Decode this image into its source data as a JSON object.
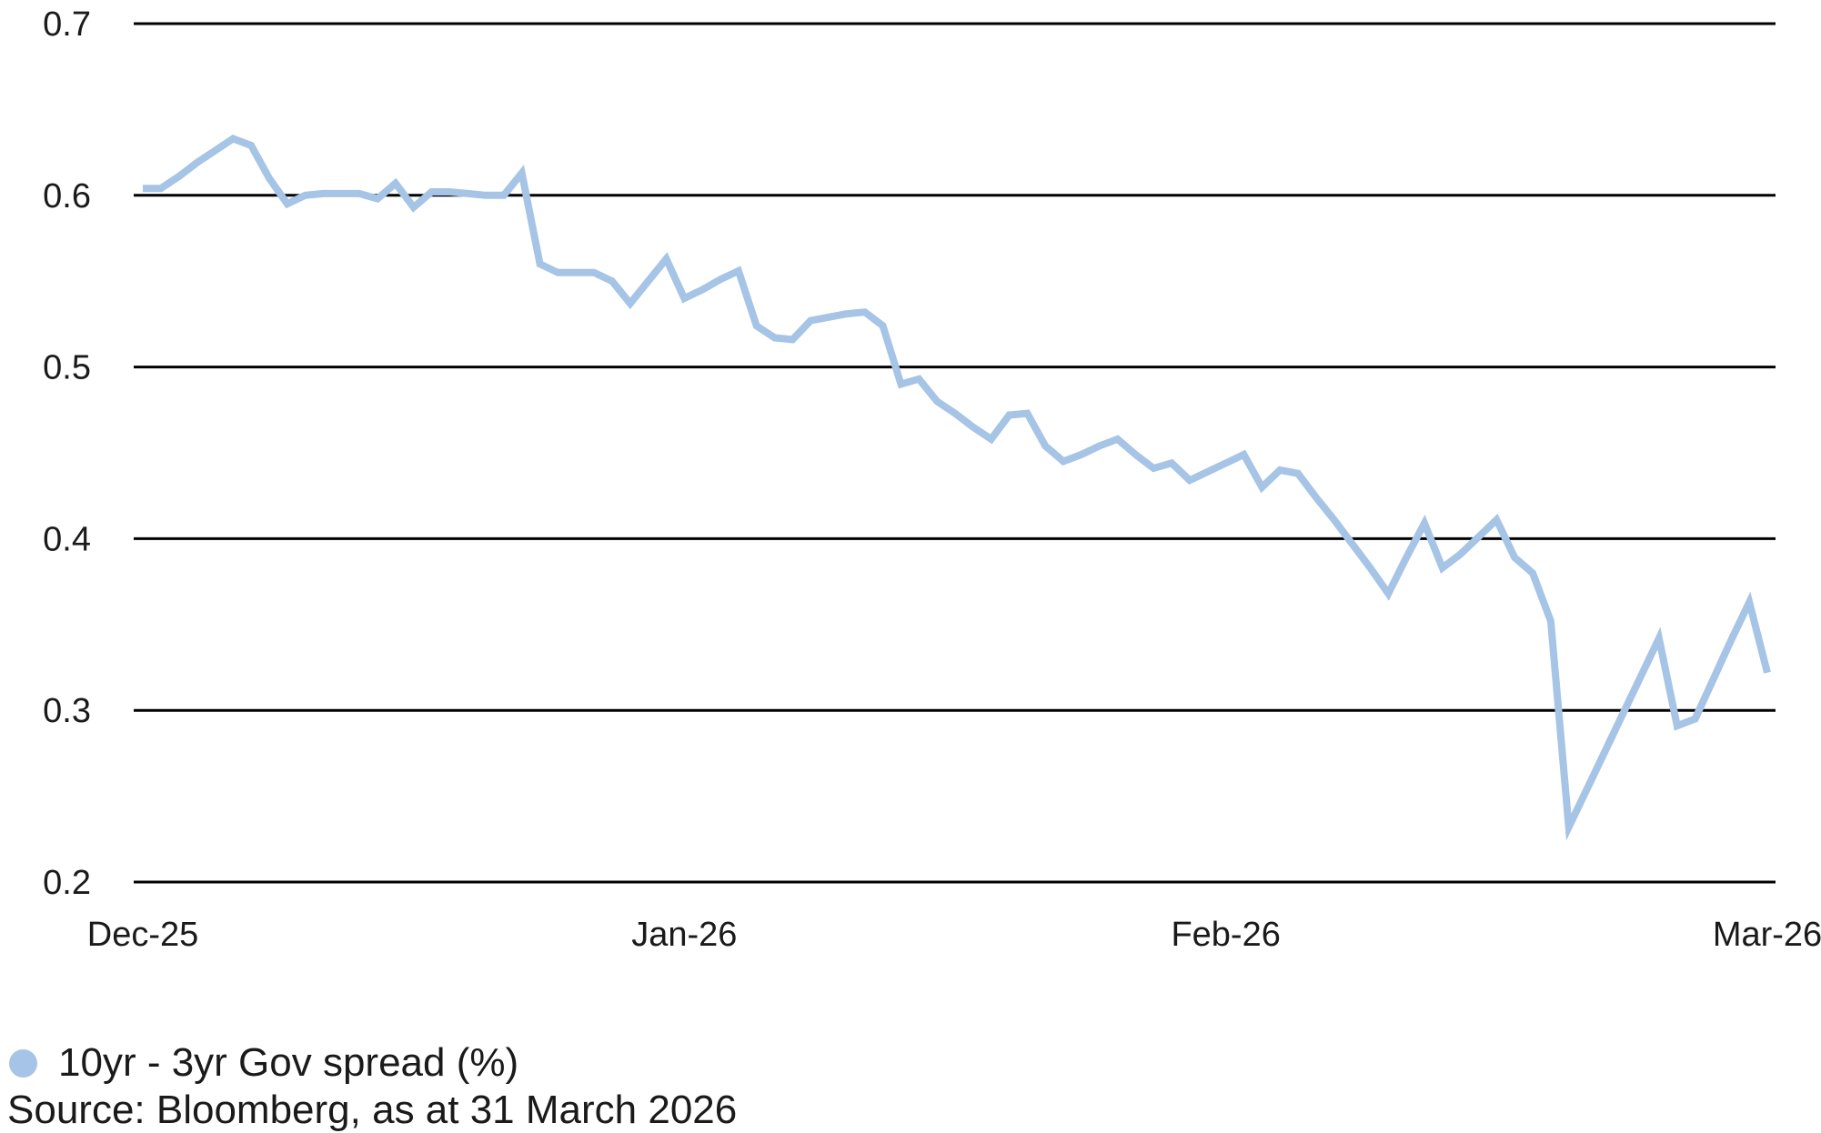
{
  "chart": {
    "legend_label": "10yr - 3yr Gov spread (%)",
    "source_text": "Source: Bloomberg, as at 31 March 2026",
    "line_color": "#a6c4e5",
    "gridline_color": "#000000",
    "text_color": "#1a1a1a"
  },
  "chart_data": {
    "type": "line",
    "title": "",
    "xlabel": "",
    "ylabel": "",
    "ylim": [
      0.2,
      0.7
    ],
    "y_ticks": [
      0.7,
      0.6,
      0.5,
      0.4,
      0.3,
      0.2
    ],
    "grid": "horizontal-only",
    "legend_position": "bottom-left",
    "source": "Source: Bloomberg, as at 31 March 2026",
    "x_tick_labels": [
      "Dec-25",
      "Jan-26",
      "Feb-26",
      "Mar-26"
    ],
    "x_tick_indices": [
      0,
      30,
      60,
      90
    ],
    "x_range_note": "daily observations, 31 Dec 2025 to 31 Mar 2026",
    "series": [
      {
        "name": "10yr - 3yr Gov spread (%)",
        "color": "#a6c4e5",
        "values": [
          0.604,
          0.604,
          0.611,
          0.619,
          0.626,
          0.633,
          0.629,
          0.61,
          0.595,
          0.6,
          0.601,
          0.601,
          0.601,
          0.598,
          0.607,
          0.593,
          0.602,
          0.602,
          0.601,
          0.6,
          0.6,
          0.613,
          0.56,
          0.555,
          0.555,
          0.555,
          0.55,
          0.537,
          0.55,
          0.563,
          0.54,
          0.545,
          0.551,
          0.556,
          0.524,
          0.517,
          0.516,
          0.527,
          0.529,
          0.531,
          0.532,
          0.524,
          0.49,
          0.493,
          0.48,
          0.473,
          0.465,
          0.458,
          0.472,
          0.473,
          0.454,
          0.445,
          0.449,
          0.454,
          0.458,
          0.449,
          0.441,
          0.444,
          0.434,
          0.439,
          0.444,
          0.449,
          0.43,
          0.44,
          0.438,
          0.424,
          0.411,
          0.397,
          0.383,
          0.368,
          0.389,
          0.409,
          0.383,
          0.391,
          0.401,
          0.411,
          0.389,
          0.38,
          0.352,
          0.232,
          0.254,
          0.276,
          0.298,
          0.32,
          0.342,
          0.291,
          0.295,
          0.318,
          0.341,
          0.363,
          0.322
        ]
      }
    ]
  }
}
